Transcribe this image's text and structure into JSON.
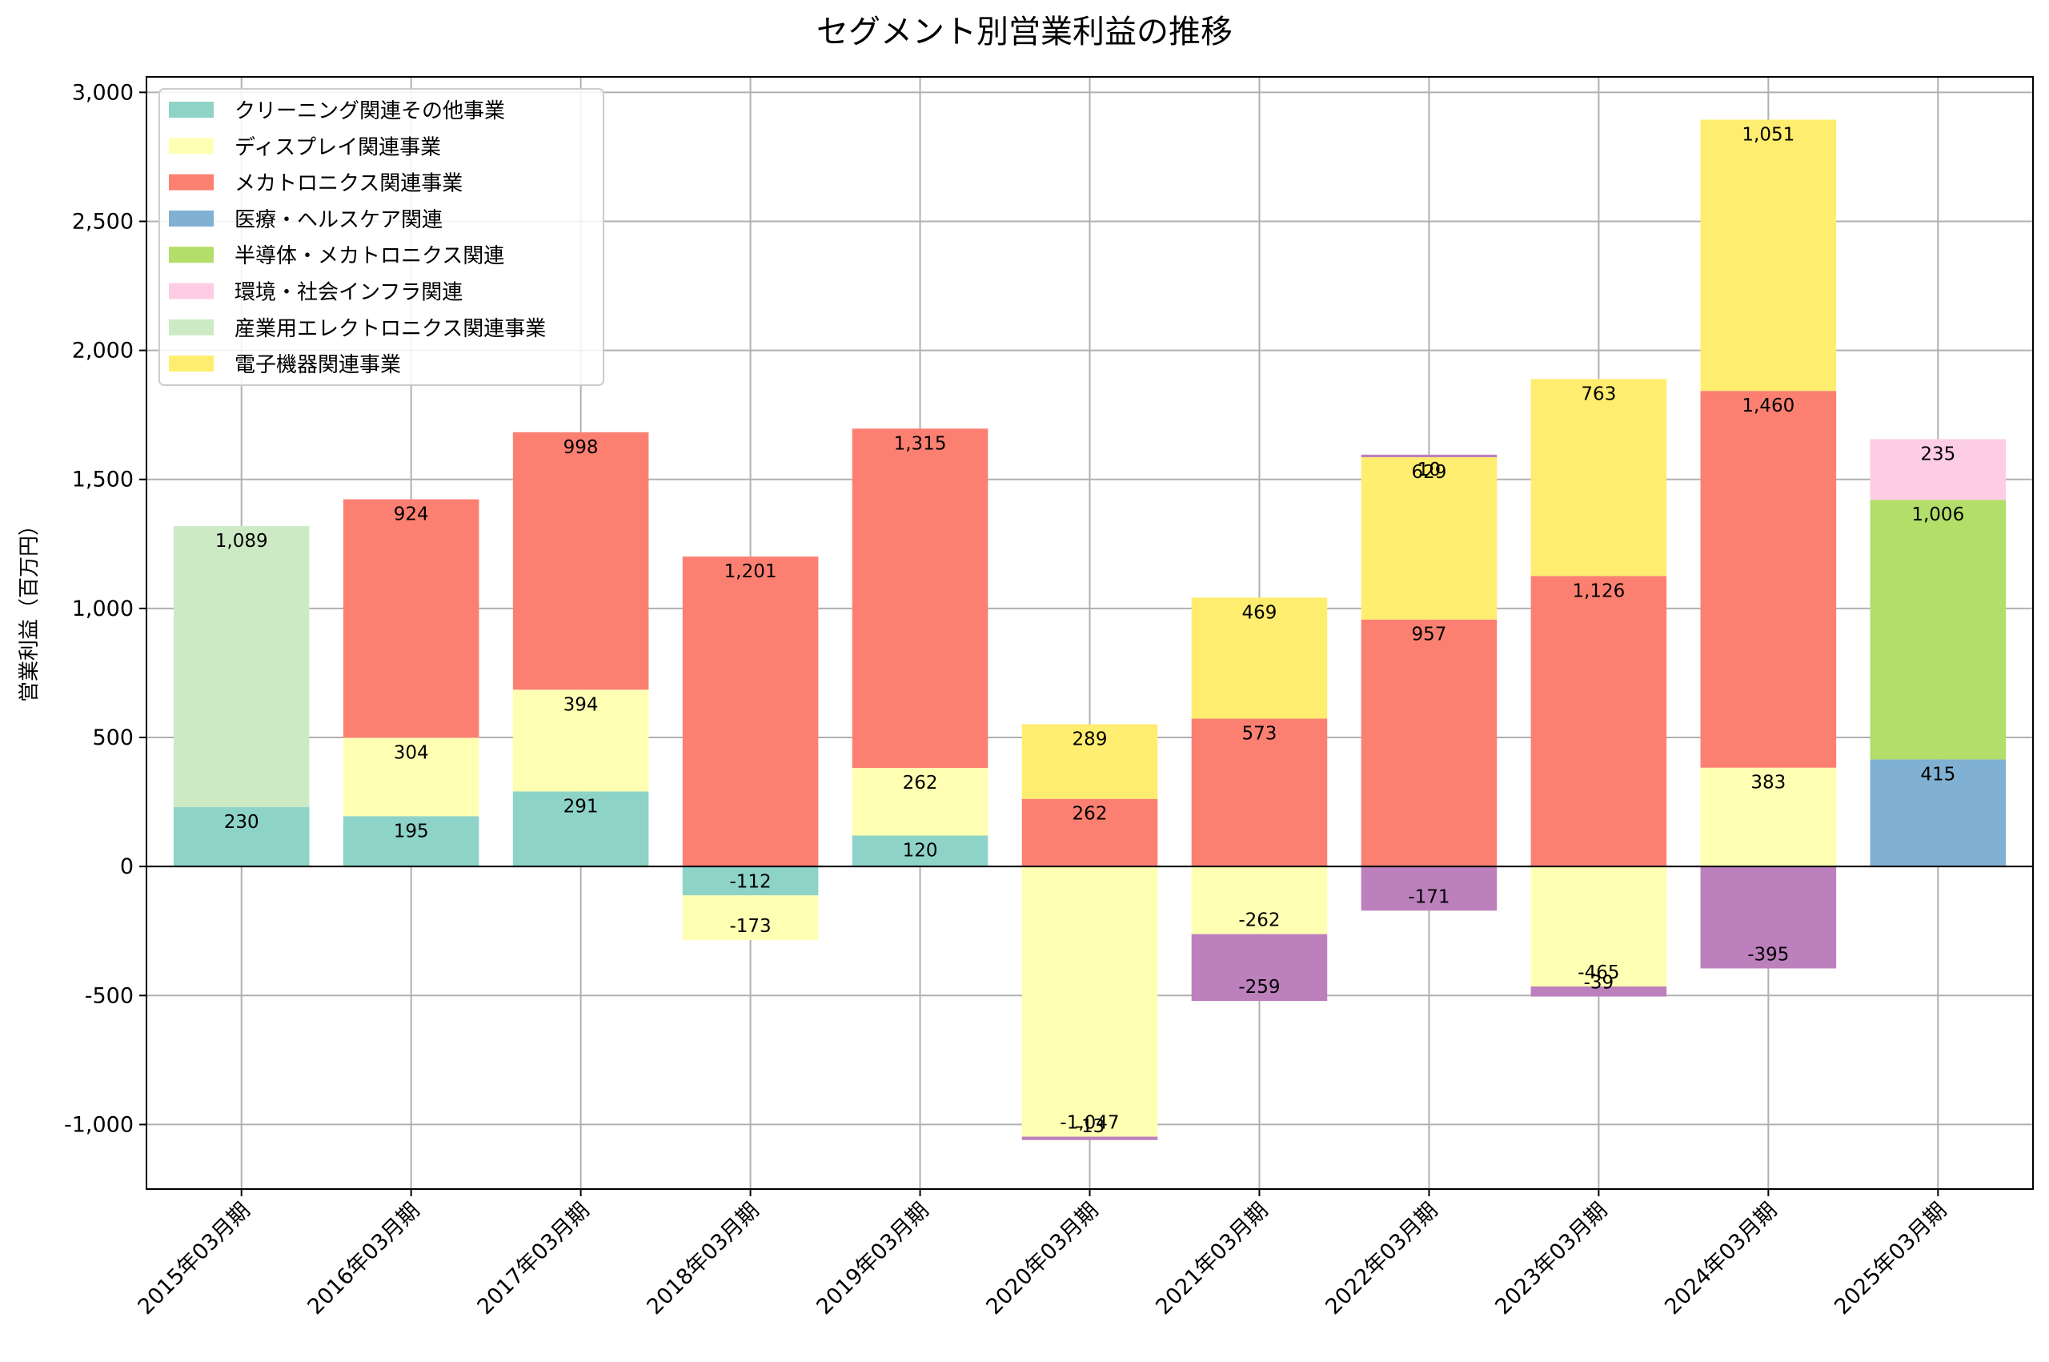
{
  "chart_data": {
    "type": "bar",
    "stacked": true,
    "title": "セグメント別営業利益の推移",
    "xlabel": "",
    "ylabel": "営業利益（百万円）",
    "ylim": [
      -1250,
      3060
    ],
    "yticks": [
      -1000,
      -500,
      0,
      500,
      1000,
      1500,
      2000,
      2500,
      3000
    ],
    "ytick_labels": [
      "-1,000",
      "-500",
      "0",
      "500",
      "1,000",
      "1,500",
      "2,000",
      "2,500",
      "3,000"
    ],
    "grid": true,
    "legend_position": "top-left",
    "categories": [
      "2015年03月期",
      "2016年03月期",
      "2017年03月期",
      "2018年03月期",
      "2019年03月期",
      "2020年03月期",
      "2021年03月期",
      "2022年03月期",
      "2023年03月期",
      "2024年03月期",
      "2025年03月期"
    ],
    "legend_series": [
      "クリーニング関連その他事業",
      "ディスプレイ関連事業",
      "メカトロニクス関連事業",
      "医療・ヘルスケア関連",
      "半導体・メカトロニクス関連",
      "環境・社会インフラ関連",
      "産業用エレクトロニクス関連事業",
      "電子機器関連事業"
    ],
    "series": [
      {
        "name": "クリーニング関連その他事業",
        "color": "#8dd3c7",
        "values": [
          230,
          195,
          291,
          -112,
          120,
          null,
          null,
          null,
          null,
          null,
          null
        ],
        "labels": [
          "230",
          "195",
          "291",
          "-112",
          "120",
          null,
          null,
          null,
          null,
          null,
          null
        ]
      },
      {
        "name": "ディスプレイ関連事業",
        "color": "#ffffb3",
        "values": [
          null,
          304,
          394,
          -173,
          262,
          -1047,
          -262,
          null,
          -465,
          383,
          null
        ],
        "labels": [
          null,
          "304",
          "394",
          "-173",
          "262",
          "-1,047",
          "-262",
          null,
          "-465",
          "383",
          null
        ]
      },
      {
        "name": "メカトロニクス関連事業",
        "color": "#fb8072",
        "values": [
          null,
          924,
          998,
          1201,
          1315,
          262,
          573,
          957,
          1126,
          1460,
          null
        ],
        "labels": [
          null,
          "924",
          "998",
          "1,201",
          "1,315",
          "262",
          "573",
          "957",
          "1,126",
          "1,460",
          null
        ]
      },
      {
        "name": "医療・ヘルスケア関連",
        "color": "#80b1d3",
        "values": [
          null,
          null,
          null,
          null,
          null,
          null,
          null,
          null,
          null,
          null,
          415
        ],
        "labels": [
          null,
          null,
          null,
          null,
          null,
          null,
          null,
          null,
          null,
          null,
          "415"
        ]
      },
      {
        "name": "半導体・メカトロニクス関連",
        "color": "#b3de69",
        "values": [
          null,
          null,
          null,
          null,
          null,
          null,
          null,
          null,
          null,
          null,
          1006
        ],
        "labels": [
          null,
          null,
          null,
          null,
          null,
          null,
          null,
          null,
          null,
          null,
          "1,006"
        ]
      },
      {
        "name": "環境・社会インフラ関連",
        "color": "#fccde5",
        "values": [
          null,
          null,
          null,
          null,
          null,
          null,
          null,
          null,
          null,
          null,
          235
        ],
        "labels": [
          null,
          null,
          null,
          null,
          null,
          null,
          null,
          null,
          null,
          null,
          "235"
        ]
      },
      {
        "name": "産業用エレクトロニクス関連事業",
        "color": "#ccebc5",
        "values": [
          1089,
          null,
          null,
          null,
          null,
          null,
          null,
          null,
          null,
          null,
          null
        ],
        "labels": [
          "1,089",
          null,
          null,
          null,
          null,
          null,
          null,
          null,
          null,
          null,
          null
        ]
      },
      {
        "name": "電子機器関連事業",
        "color": "#ffed6f",
        "values": [
          null,
          null,
          null,
          null,
          null,
          289,
          469,
          629,
          763,
          1051,
          null
        ],
        "labels": [
          null,
          null,
          null,
          null,
          null,
          "289",
          "469",
          "629",
          "763",
          "1,051",
          null
        ]
      },
      {
        "color": "#bc80bd",
        "values": [
          null,
          null,
          null,
          null,
          null,
          -13,
          -259,
          -171,
          -39,
          -395,
          null
        ],
        "labels": [
          null,
          null,
          null,
          null,
          null,
          "-13",
          "-259",
          "-171",
          "-39",
          "-395",
          null
        ]
      },
      {
        "color": "#bc80bd",
        "values": [
          null,
          null,
          null,
          null,
          null,
          null,
          null,
          10,
          null,
          null,
          null
        ],
        "labels": [
          null,
          null,
          null,
          null,
          null,
          null,
          null,
          "10",
          null,
          null,
          null
        ]
      }
    ]
  }
}
